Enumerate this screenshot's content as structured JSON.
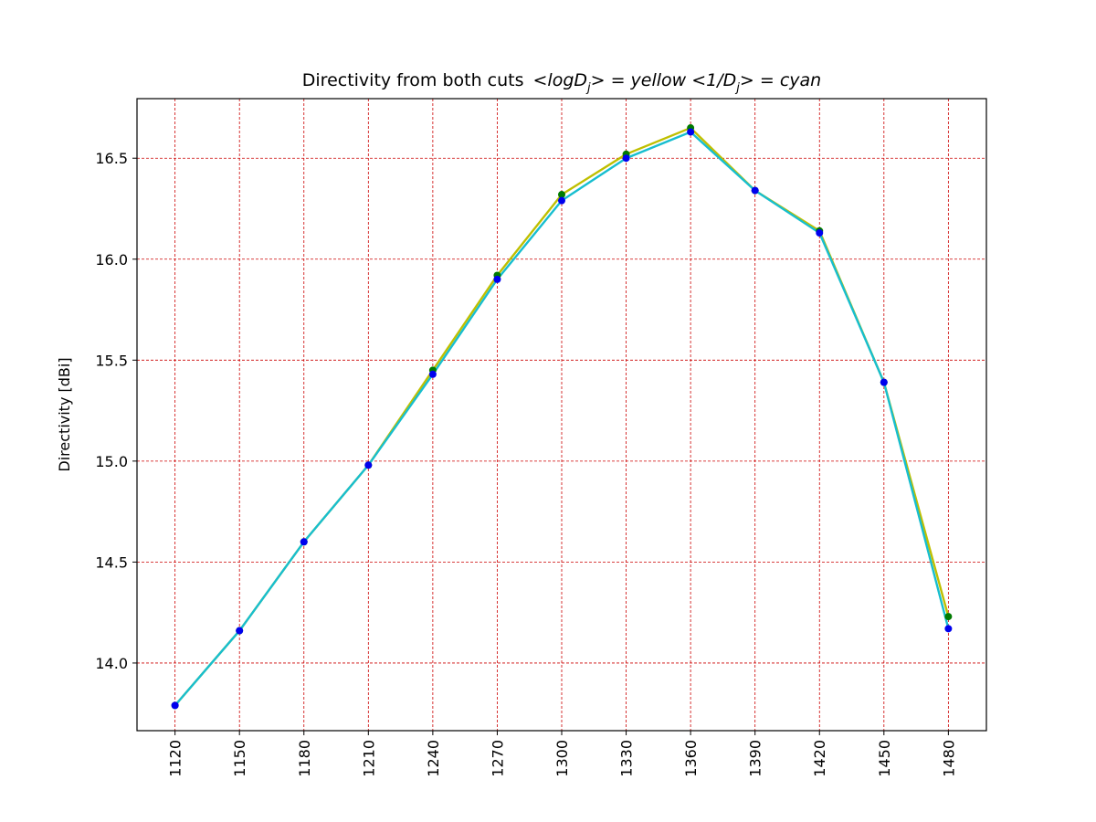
{
  "chart_data": {
    "type": "line",
    "title": {
      "prefix": "Directivity from both cuts",
      "part1": "<logD",
      "sub1": "j",
      "part2": "> = yellow  <1/D",
      "sub2": "j",
      "part3": "> = cyan"
    },
    "xlabel": "",
    "ylabel": "Directivity [dBi]",
    "x": [
      1120,
      1150,
      1180,
      1210,
      1240,
      1270,
      1300,
      1330,
      1360,
      1390,
      1420,
      1450,
      1480
    ],
    "xticks": [
      "1120",
      "1150",
      "1180",
      "1210",
      "1240",
      "1270",
      "1300",
      "1330",
      "1360",
      "1390",
      "1420",
      "1450",
      "1480"
    ],
    "yticks": [
      "14.0",
      "14.5",
      "15.0",
      "15.5",
      "16.0",
      "16.5"
    ],
    "ytick_values": [
      14.0,
      14.5,
      15.0,
      15.5,
      16.0,
      16.5
    ],
    "xlim": [
      1102.3,
      1497.7
    ],
    "ylim": [
      13.665,
      16.795
    ],
    "grid": true,
    "grid_color": "#cc0000",
    "series": [
      {
        "line_color": "#bfbf00",
        "marker_color": "#007a00",
        "values": [
          13.79,
          14.16,
          14.6,
          14.98,
          15.45,
          15.92,
          16.32,
          16.52,
          16.65,
          16.34,
          16.14,
          15.39,
          14.23
        ]
      },
      {
        "line_color": "#17becf",
        "marker_color": "#0000ee",
        "values": [
          13.79,
          14.16,
          14.6,
          14.98,
          15.43,
          15.9,
          16.29,
          16.5,
          16.63,
          16.34,
          16.13,
          15.39,
          14.17
        ]
      }
    ]
  }
}
